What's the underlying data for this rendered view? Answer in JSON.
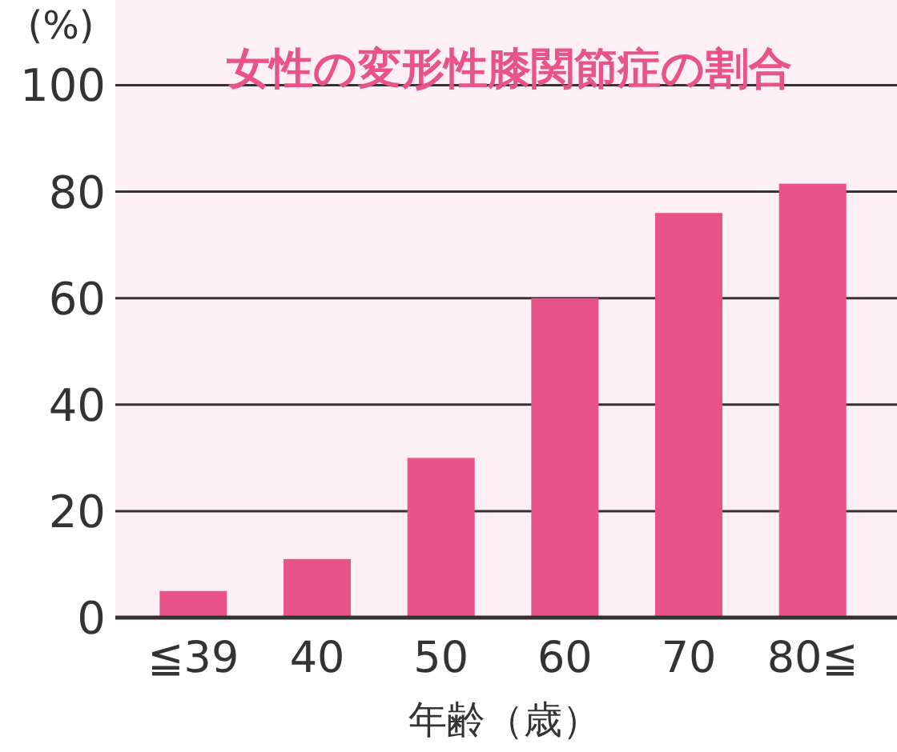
{
  "chart_data": {
    "type": "bar",
    "title": "女性の変形性膝関節症の割合",
    "ylabel": "(%)",
    "xlabel": "年齢（歳）",
    "categories": [
      "≦39",
      "40",
      "50",
      "60",
      "70",
      "80≦"
    ],
    "values": [
      5,
      11,
      30,
      60,
      76,
      81.5
    ],
    "color": "#e8538a",
    "ylim": [
      0,
      116
    ],
    "yticks": [
      0,
      20,
      40,
      60,
      80,
      100
    ],
    "grid": "y"
  }
}
